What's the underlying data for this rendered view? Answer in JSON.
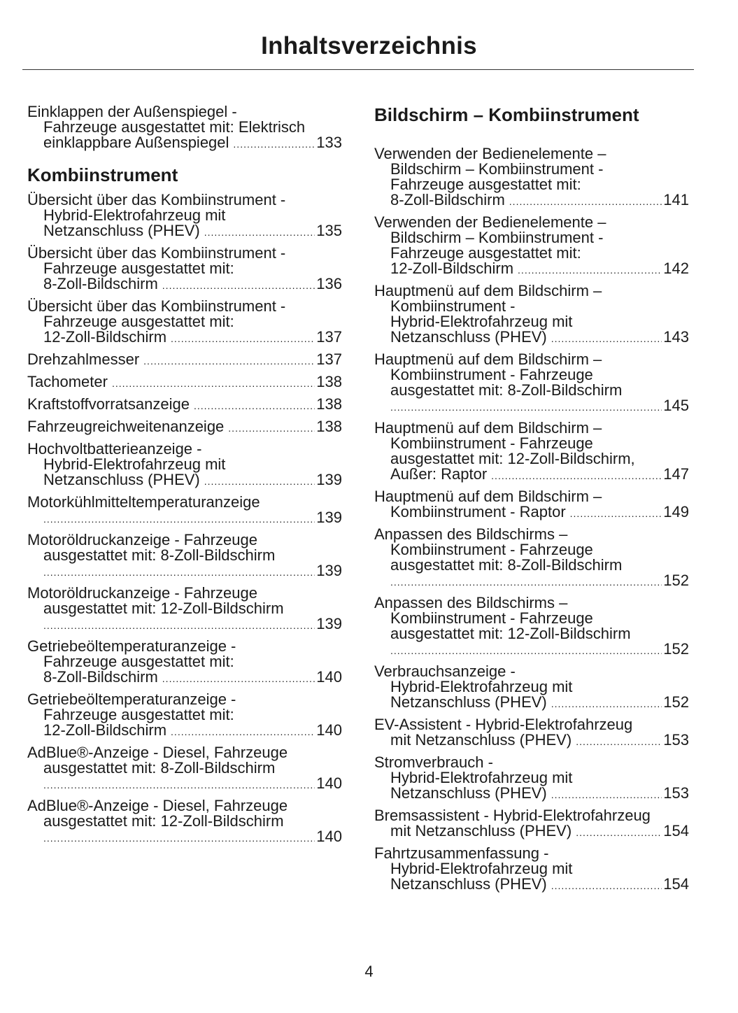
{
  "title": "Inhaltsverzeichnis",
  "page_number": "4",
  "left": [
    {
      "type": "entry",
      "lines": [
        "Einklappen der Außenspiegel -",
        "Fahrzeuge ausgestattet mit: Elektrisch",
        "einklappbare Außenspiegel"
      ],
      "page": "133"
    },
    {
      "type": "heading",
      "text": "Kombiinstrument"
    },
    {
      "type": "entry",
      "lines": [
        "Übersicht über das Kombiinstrument -",
        "Hybrid-Elektrofahrzeug mit",
        "Netzanschluss (PHEV)"
      ],
      "page": "135"
    },
    {
      "type": "entry",
      "lines": [
        "Übersicht über das Kombiinstrument -",
        "Fahrzeuge ausgestattet mit:",
        "8-Zoll-Bildschirm"
      ],
      "page": "136"
    },
    {
      "type": "entry",
      "lines": [
        "Übersicht über das Kombiinstrument -",
        "Fahrzeuge ausgestattet mit:",
        "12-Zoll-Bildschirm"
      ],
      "page": "137"
    },
    {
      "type": "entry",
      "lines": [
        "Drehzahlmesser"
      ],
      "page": "137"
    },
    {
      "type": "entry",
      "lines": [
        "Tachometer"
      ],
      "page": "138"
    },
    {
      "type": "entry",
      "lines": [
        "Kraftstoffvorratsanzeige"
      ],
      "page": "138"
    },
    {
      "type": "entry",
      "lines": [
        "Fahrzeugreichweitenanzeige"
      ],
      "page": "138"
    },
    {
      "type": "entry",
      "lines": [
        "Hochvoltbatterieanzeige -",
        "Hybrid-Elektrofahrzeug mit",
        "Netzanschluss (PHEV)"
      ],
      "page": "139"
    },
    {
      "type": "entry",
      "lines": [
        "Motorkühlmitteltemperaturanzeige",
        ""
      ],
      "page": "139"
    },
    {
      "type": "entry",
      "lines": [
        "Motoröldruckanzeige - Fahrzeuge",
        "ausgestattet mit: 8-Zoll-Bildschirm",
        ""
      ],
      "page": "139"
    },
    {
      "type": "entry",
      "lines": [
        "Motoröldruckanzeige - Fahrzeuge",
        "ausgestattet mit: 12-Zoll-Bildschirm",
        ""
      ],
      "page": "139"
    },
    {
      "type": "entry",
      "lines": [
        "Getriebeöltemperaturanzeige -",
        "Fahrzeuge ausgestattet mit:",
        "8-Zoll-Bildschirm"
      ],
      "page": "140"
    },
    {
      "type": "entry",
      "lines": [
        "Getriebeöltemperaturanzeige -",
        "Fahrzeuge ausgestattet mit:",
        "12-Zoll-Bildschirm"
      ],
      "page": "140"
    },
    {
      "type": "entry",
      "lines": [
        "AdBlue®-Anzeige - Diesel, Fahrzeuge",
        "ausgestattet mit: 8-Zoll-Bildschirm",
        ""
      ],
      "page": "140"
    },
    {
      "type": "entry",
      "lines": [
        "AdBlue®-Anzeige - Diesel, Fahrzeuge",
        "ausgestattet mit: 12-Zoll-Bildschirm",
        ""
      ],
      "page": "140"
    }
  ],
  "right": [
    {
      "type": "heading",
      "text": "Bildschirm – Kombiinstrument"
    },
    {
      "type": "entry",
      "lines": [
        "Verwenden der Bedienelemente –",
        "Bildschirm – Kombiinstrument -",
        "Fahrzeuge ausgestattet mit:",
        "8-Zoll-Bildschirm"
      ],
      "page": "141"
    },
    {
      "type": "entry",
      "lines": [
        "Verwenden der Bedienelemente –",
        "Bildschirm – Kombiinstrument -",
        "Fahrzeuge ausgestattet mit:",
        "12-Zoll-Bildschirm"
      ],
      "page": "142"
    },
    {
      "type": "entry",
      "lines": [
        "Hauptmenü auf dem Bildschirm –",
        "Kombiinstrument -",
        "Hybrid-Elektrofahrzeug mit",
        "Netzanschluss (PHEV)"
      ],
      "page": "143"
    },
    {
      "type": "entry",
      "lines": [
        "Hauptmenü auf dem Bildschirm –",
        "Kombiinstrument - Fahrzeuge",
        "ausgestattet mit: 8-Zoll-Bildschirm",
        ""
      ],
      "page": "145"
    },
    {
      "type": "entry",
      "lines": [
        "Hauptmenü auf dem Bildschirm –",
        "Kombiinstrument - Fahrzeuge",
        "ausgestattet mit: 12-Zoll-Bildschirm,",
        "Außer: Raptor"
      ],
      "page": "147"
    },
    {
      "type": "entry",
      "lines": [
        "Hauptmenü auf dem Bildschirm –",
        "Kombiinstrument - Raptor"
      ],
      "page": "149"
    },
    {
      "type": "entry",
      "lines": [
        "Anpassen des Bildschirms –",
        "Kombiinstrument - Fahrzeuge",
        "ausgestattet mit: 8-Zoll-Bildschirm",
        ""
      ],
      "page": "152"
    },
    {
      "type": "entry",
      "lines": [
        "Anpassen des Bildschirms –",
        "Kombiinstrument - Fahrzeuge",
        "ausgestattet mit: 12-Zoll-Bildschirm",
        ""
      ],
      "page": "152"
    },
    {
      "type": "entry",
      "lines": [
        "Verbrauchsanzeige -",
        "Hybrid-Elektrofahrzeug mit",
        "Netzanschluss (PHEV)"
      ],
      "page": "152"
    },
    {
      "type": "entry",
      "lines": [
        "EV-Assistent - Hybrid-Elektrofahrzeug",
        "mit Netzanschluss (PHEV)"
      ],
      "page": "153"
    },
    {
      "type": "entry",
      "lines": [
        "Stromverbrauch -",
        "Hybrid-Elektrofahrzeug mit",
        "Netzanschluss (PHEV)"
      ],
      "page": "153"
    },
    {
      "type": "entry",
      "lines": [
        "Bremsassistent - Hybrid-Elektrofahrzeug",
        "mit Netzanschluss (PHEV)"
      ],
      "page": "154"
    },
    {
      "type": "entry",
      "lines": [
        "Fahrtzusammenfassung -",
        "Hybrid-Elektrofahrzeug mit",
        "Netzanschluss (PHEV)"
      ],
      "page": "154"
    }
  ]
}
